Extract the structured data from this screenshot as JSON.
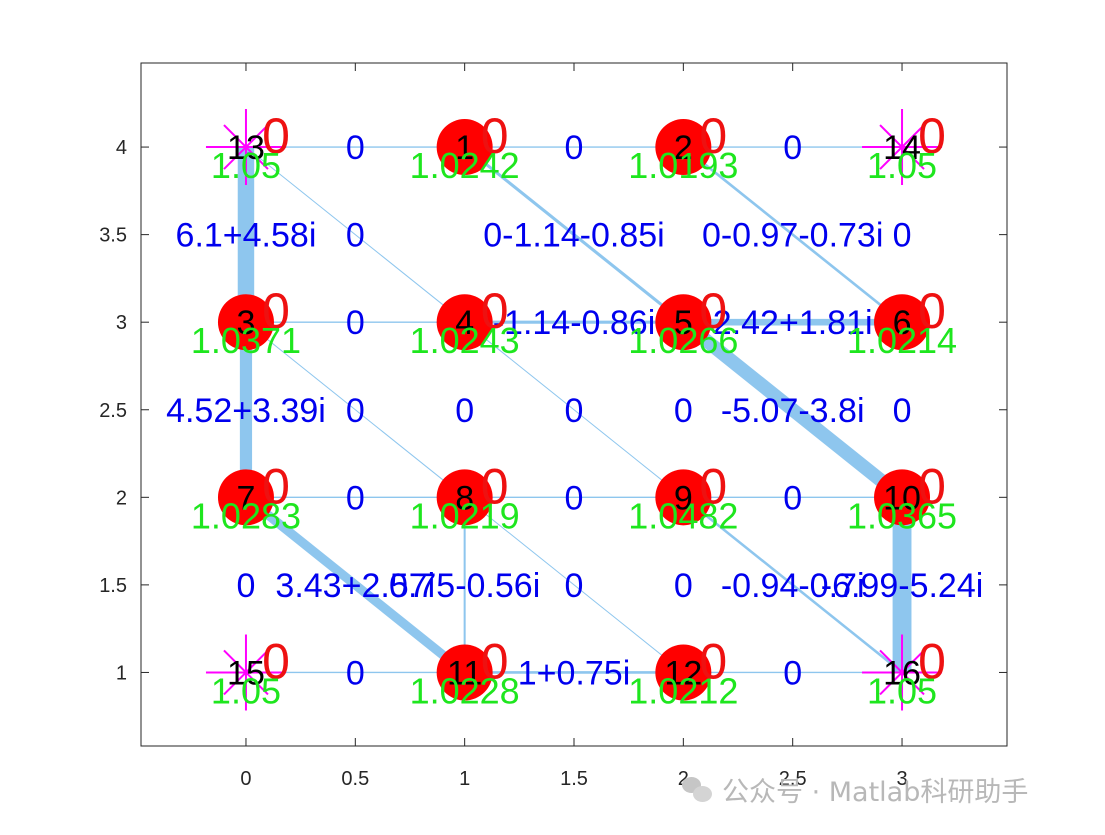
{
  "watermark": "公众号 · Matlab科研助手",
  "chart_data": {
    "type": "scatter",
    "title": "",
    "xlabel": "",
    "ylabel": "",
    "xlim": [
      -0.48,
      3.48
    ],
    "ylim": [
      0.58,
      4.48
    ],
    "grid": false,
    "xticks": [
      0,
      0.5,
      1,
      1.5,
      2,
      2.5,
      3
    ],
    "xticklabels": [
      "0",
      "0.5",
      "1",
      "1.5",
      "2",
      "2.5",
      "3"
    ],
    "yticks": [
      1,
      1.5,
      2,
      2.5,
      3,
      3.5,
      4
    ],
    "yticklabels": [
      "1",
      "1.5",
      "2",
      "2.5",
      "3",
      "3.5",
      "4"
    ],
    "colors": {
      "edge": "#8ec6ee",
      "bus_node": "#ff0000",
      "source_marker": "#ff00ff",
      "edge_label": "#0000ee",
      "voltage_label": "#1ee61e",
      "zero_label": "#ee1111"
    },
    "nodes": [
      {
        "id": "13",
        "x": 0,
        "y": 4,
        "kind": "source",
        "voltage": "1.05",
        "mark": "0"
      },
      {
        "id": "1",
        "x": 1,
        "y": 4,
        "kind": "bus",
        "voltage": "1.0242",
        "mark": "0"
      },
      {
        "id": "2",
        "x": 2,
        "y": 4,
        "kind": "bus",
        "voltage": "1.0193",
        "mark": "0"
      },
      {
        "id": "14",
        "x": 3,
        "y": 4,
        "kind": "source",
        "voltage": "1.05",
        "mark": "0"
      },
      {
        "id": "3",
        "x": 0,
        "y": 3,
        "kind": "bus",
        "voltage": "1.0371",
        "mark": "0"
      },
      {
        "id": "4",
        "x": 1,
        "y": 3,
        "kind": "bus",
        "voltage": "1.0243",
        "mark": "0"
      },
      {
        "id": "5",
        "x": 2,
        "y": 3,
        "kind": "bus",
        "voltage": "1.0266",
        "mark": "0"
      },
      {
        "id": "6",
        "x": 3,
        "y": 3,
        "kind": "bus",
        "voltage": "1.0214",
        "mark": "0"
      },
      {
        "id": "7",
        "x": 0,
        "y": 2,
        "kind": "bus",
        "voltage": "1.0283",
        "mark": "0"
      },
      {
        "id": "8",
        "x": 1,
        "y": 2,
        "kind": "bus",
        "voltage": "1.0219",
        "mark": "0"
      },
      {
        "id": "9",
        "x": 2,
        "y": 2,
        "kind": "bus",
        "voltage": "1.0482",
        "mark": "0"
      },
      {
        "id": "10",
        "x": 3,
        "y": 2,
        "kind": "bus",
        "voltage": "1.0365",
        "mark": "0"
      },
      {
        "id": "15",
        "x": 0,
        "y": 1,
        "kind": "source",
        "voltage": "1.05",
        "mark": "0"
      },
      {
        "id": "11",
        "x": 1,
        "y": 1,
        "kind": "bus",
        "voltage": "1.0228",
        "mark": "0"
      },
      {
        "id": "12",
        "x": 2,
        "y": 1,
        "kind": "bus",
        "voltage": "1.0212",
        "mark": "0"
      },
      {
        "id": "16",
        "x": 3,
        "y": 1,
        "kind": "source",
        "voltage": "1.05",
        "mark": "0"
      }
    ],
    "edges": [
      {
        "x": [
          0,
          1
        ],
        "y": [
          4,
          4
        ],
        "weight": 0.5
      },
      {
        "x": [
          1,
          2
        ],
        "y": [
          4,
          4
        ],
        "weight": 0.5
      },
      {
        "x": [
          2,
          3
        ],
        "y": [
          4,
          4
        ],
        "weight": 0.5
      },
      {
        "x": [
          0,
          0
        ],
        "y": [
          4,
          3
        ],
        "weight": 6.1
      },
      {
        "x": [
          0,
          1
        ],
        "y": [
          4,
          3
        ],
        "weight": 0.3
      },
      {
        "x": [
          1,
          2
        ],
        "y": [
          4,
          3
        ],
        "weight": 1.14
      },
      {
        "x": [
          2,
          3
        ],
        "y": [
          4,
          3
        ],
        "weight": 0.97
      },
      {
        "x": [
          0,
          1
        ],
        "y": [
          3,
          3
        ],
        "weight": 0.5
      },
      {
        "x": [
          1,
          2
        ],
        "y": [
          3,
          3
        ],
        "weight": 1.14
      },
      {
        "x": [
          2,
          3
        ],
        "y": [
          3,
          3
        ],
        "weight": 2.42
      },
      {
        "x": [
          0,
          0
        ],
        "y": [
          3,
          2
        ],
        "weight": 4.52
      },
      {
        "x": [
          0,
          1
        ],
        "y": [
          3,
          2
        ],
        "weight": 0.3
      },
      {
        "x": [
          1,
          2
        ],
        "y": [
          3,
          2
        ],
        "weight": 0.3
      },
      {
        "x": [
          2,
          3
        ],
        "y": [
          3,
          2
        ],
        "weight": 5.07
      },
      {
        "x": [
          0,
          1
        ],
        "y": [
          2,
          2
        ],
        "weight": 0.5
      },
      {
        "x": [
          1,
          2
        ],
        "y": [
          2,
          2
        ],
        "weight": 0.5
      },
      {
        "x": [
          2,
          3
        ],
        "y": [
          2,
          2
        ],
        "weight": 0.5
      },
      {
        "x": [
          0,
          1
        ],
        "y": [
          2,
          1
        ],
        "weight": 3.43
      },
      {
        "x": [
          1,
          1
        ],
        "y": [
          2,
          1
        ],
        "weight": 0.75
      },
      {
        "x": [
          1,
          2
        ],
        "y": [
          2,
          1
        ],
        "weight": 0.3
      },
      {
        "x": [
          2,
          3
        ],
        "y": [
          2,
          1
        ],
        "weight": 0.94
      },
      {
        "x": [
          3,
          3
        ],
        "y": [
          2,
          1
        ],
        "weight": 6.99
      },
      {
        "x": [
          0,
          1
        ],
        "y": [
          1,
          1
        ],
        "weight": 0.5
      },
      {
        "x": [
          1,
          2
        ],
        "y": [
          1,
          1
        ],
        "weight": 1.0
      },
      {
        "x": [
          2,
          3
        ],
        "y": [
          1,
          1
        ],
        "weight": 0.5
      }
    ],
    "edge_labels": [
      {
        "text": "0",
        "x": 0.5,
        "y": 4
      },
      {
        "text": "0",
        "x": 1.5,
        "y": 4
      },
      {
        "text": "0",
        "x": 2.5,
        "y": 4
      },
      {
        "text": "6.1+4.58i",
        "x": 0,
        "y": 3.5
      },
      {
        "text": "0",
        "x": 0.5,
        "y": 3.5
      },
      {
        "text": "0-1.14-0.85i",
        "x": 1.5,
        "y": 3.5
      },
      {
        "text": "0-0.97-0.73i",
        "x": 2.5,
        "y": 3.5
      },
      {
        "text": "0",
        "x": 3,
        "y": 3.5
      },
      {
        "text": "0",
        "x": 0.5,
        "y": 3
      },
      {
        "text": "-1.14-0.86i",
        "x": 1.5,
        "y": 3
      },
      {
        "text": "2.42+1.81i",
        "x": 2.5,
        "y": 3
      },
      {
        "text": "4.52+3.39i",
        "x": 0,
        "y": 2.5
      },
      {
        "text": "0",
        "x": 0.5,
        "y": 2.5
      },
      {
        "text": "0",
        "x": 1,
        "y": 2.5
      },
      {
        "text": "0",
        "x": 1.5,
        "y": 2.5
      },
      {
        "text": "0",
        "x": 2,
        "y": 2.5
      },
      {
        "text": "-5.07-3.8i",
        "x": 2.5,
        "y": 2.5
      },
      {
        "text": "0",
        "x": 3,
        "y": 2.5
      },
      {
        "text": "0",
        "x": 0.5,
        "y": 2
      },
      {
        "text": "0",
        "x": 1.5,
        "y": 2
      },
      {
        "text": "0",
        "x": 2.5,
        "y": 2
      },
      {
        "text": "0",
        "x": 0,
        "y": 1.5
      },
      {
        "text": "3.43+2.57i",
        "x": 0.5,
        "y": 1.5
      },
      {
        "text": "0.75-0.56i",
        "x": 1,
        "y": 1.5
      },
      {
        "text": "0",
        "x": 1.5,
        "y": 1.5
      },
      {
        "text": "0",
        "x": 2,
        "y": 1.5
      },
      {
        "text": "-0.94-0.7i",
        "x": 2.5,
        "y": 1.5
      },
      {
        "text": "-6.99-5.24i",
        "x": 3,
        "y": 1.5
      },
      {
        "text": "0",
        "x": 0.5,
        "y": 1
      },
      {
        "text": "1+0.75i",
        "x": 1.5,
        "y": 1
      },
      {
        "text": "0",
        "x": 2.5,
        "y": 1
      }
    ]
  }
}
